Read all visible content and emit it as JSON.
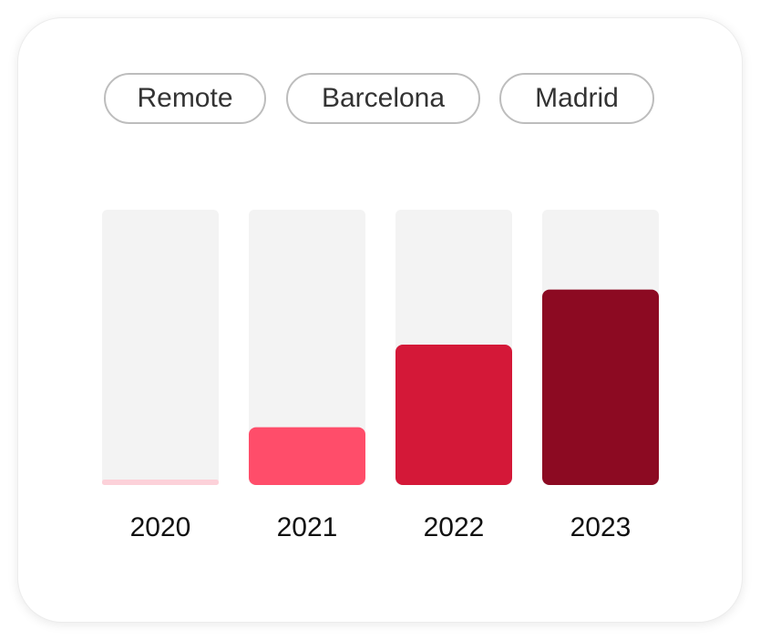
{
  "filters": [
    {
      "label": "Remote"
    },
    {
      "label": "Barcelona"
    },
    {
      "label": "Madrid"
    }
  ],
  "chart_data": {
    "type": "bar",
    "categories": [
      "2020",
      "2021",
      "2022",
      "2023"
    ],
    "values": [
      0.02,
      0.21,
      0.51,
      0.71
    ],
    "ylim": [
      0,
      1
    ],
    "title": "",
    "xlabel": "",
    "ylabel": "",
    "grid": false,
    "legend": "none",
    "colors": [
      "#fcd1d9",
      "#ff4d6a",
      "#d41838",
      "#8c0a22"
    ],
    "track_color": "#f3f3f3"
  }
}
